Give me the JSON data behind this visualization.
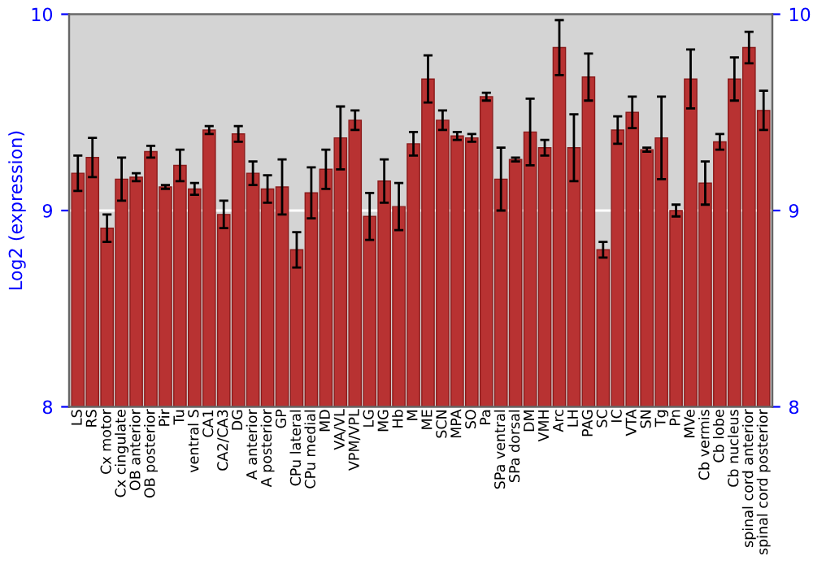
{
  "chart_data": {
    "type": "bar",
    "ylabel": "Log2 (expression)",
    "categories": [
      "LS",
      "RS",
      "Cx motor",
      "Cx cingulate",
      "OB anterior",
      "OB posterior",
      "Pir",
      "Tu",
      "ventral S",
      "CA1",
      "CA2/CA3",
      "DG",
      "A anterior",
      "A posterior",
      "GP",
      "CPu lateral",
      "CPu medial",
      "MD",
      "VA/VL",
      "VPM/VPL",
      "LG",
      "MG",
      "Hb",
      "M",
      "ME",
      "SCN",
      "MPA",
      "SO",
      "Pa",
      "SPa ventral",
      "SPa dorsal",
      "DM",
      "VMH",
      "Arc",
      "LH",
      "PAG",
      "SC",
      "IC",
      "VTA",
      "SN",
      "Tg",
      "Pn",
      "MVe",
      "Cb vermis",
      "Cb lobe",
      "Cb nucleus",
      "spinal cord anterior",
      "spinal cord posterior"
    ],
    "values": [
      9.19,
      9.27,
      8.91,
      9.16,
      9.17,
      9.3,
      9.12,
      9.23,
      9.11,
      9.41,
      8.98,
      9.39,
      9.19,
      9.11,
      9.12,
      8.8,
      9.09,
      9.21,
      9.37,
      9.46,
      8.97,
      9.15,
      9.02,
      9.34,
      9.67,
      9.46,
      9.38,
      9.37,
      9.58,
      9.16,
      9.26,
      9.4,
      9.32,
      9.83,
      9.32,
      9.68,
      8.8,
      9.41,
      9.5,
      9.31,
      9.37,
      9.0,
      9.67,
      9.14,
      9.35,
      9.67,
      9.83,
      9.51
    ],
    "errors": [
      0.09,
      0.1,
      0.07,
      0.11,
      0.02,
      0.03,
      0.01,
      0.08,
      0.03,
      0.02,
      0.07,
      0.04,
      0.06,
      0.07,
      0.14,
      0.09,
      0.13,
      0.1,
      0.16,
      0.05,
      0.12,
      0.11,
      0.12,
      0.06,
      0.12,
      0.05,
      0.02,
      0.02,
      0.02,
      0.16,
      0.01,
      0.17,
      0.04,
      0.14,
      0.17,
      0.12,
      0.04,
      0.07,
      0.08,
      0.01,
      0.21,
      0.03,
      0.15,
      0.11,
      0.04,
      0.11,
      0.08,
      0.1
    ],
    "color": "#b83232",
    "ylim": [
      8,
      10
    ],
    "yticks": [
      8,
      9,
      10
    ],
    "y2lim": [
      8,
      10
    ],
    "y2ticks": [
      8,
      9,
      10
    ],
    "grid": "y"
  }
}
